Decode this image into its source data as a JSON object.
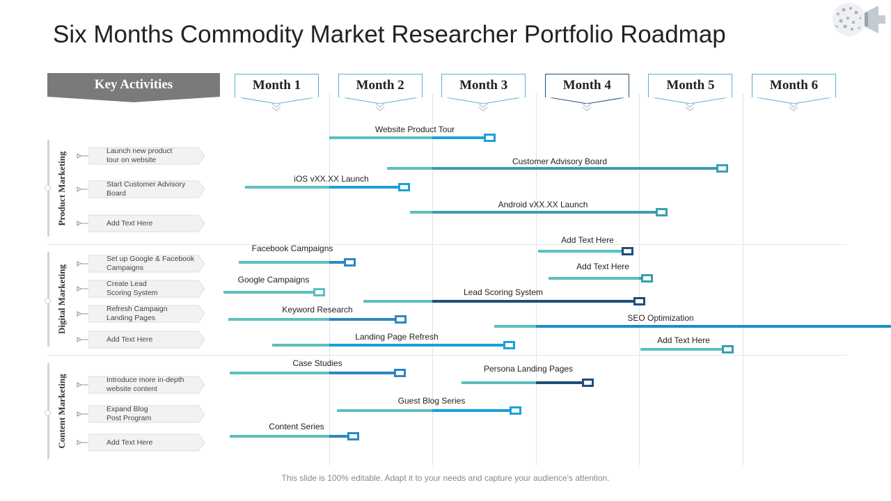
{
  "title": "Six Months Commodity Market Researcher Portfolio Roadmap",
  "key_activities_label": "Key Activities",
  "months": [
    "Month 1",
    "Month 2",
    "Month 3",
    "Month 4",
    "Month 5",
    "Month 6"
  ],
  "sections": [
    {
      "name": "Product Marketing",
      "activities": [
        "Launch new product\ntour on website",
        "Start Customer Advisory\nBoard",
        "Add Text Here"
      ]
    },
    {
      "name": "Digital Marketing",
      "activities": [
        "Set up Google & Facebook\nCampaigns",
        "Create Lead\nScoring System",
        "Refresh Campaign\nLanding Pages",
        "Add Text Here"
      ]
    },
    {
      "name": "Content Marketing",
      "activities": [
        "Introduce more in-depth\nwebsite content",
        "Expand Blog\nPost Program",
        "Add Text Here"
      ]
    }
  ],
  "bars": [
    {
      "label": "Website Product Tour",
      "start": 1.0,
      "end": 2.55,
      "color": "#1ba0d9"
    },
    {
      "label": "Customer Advisory Board",
      "start": 1.56,
      "end": 4.8,
      "color": "#3a9db0"
    },
    {
      "label": "iOS vXX.XX  Launch",
      "start": 0.19,
      "end": 1.72,
      "color": "#1ba0d9"
    },
    {
      "label": "Android vXX.XX  Launch",
      "start": 1.78,
      "end": 4.21,
      "color": "#3a9db0"
    },
    {
      "label": "Facebook Campaigns",
      "start": 0.13,
      "end": 1.2,
      "color": "#2e86c1"
    },
    {
      "label": "Add Text Here",
      "start": 3.02,
      "end": 3.88,
      "color": "#1f4e79"
    },
    {
      "label": "Add Text Here",
      "start": 3.12,
      "end": 4.07,
      "color": "#3a9db0"
    },
    {
      "label": "Google Campaigns",
      "start": -0.02,
      "end": 0.9,
      "color": "#5bbfbf"
    },
    {
      "label": "Lead Scoring System",
      "start": 1.33,
      "end": 4.0,
      "color": "#1f4e79"
    },
    {
      "label": "Keyword Research",
      "start": 0.03,
      "end": 1.69,
      "color": "#2e86c1"
    },
    {
      "label": "SEO Optimization",
      "start": 2.6,
      "end": 6.7,
      "color": "#1b8fc0"
    },
    {
      "label": "Landing Page Refresh",
      "start": 0.45,
      "end": 2.74,
      "color": "#1ba0d9"
    },
    {
      "label": "Add Text Here",
      "start": 4.01,
      "end": 4.85,
      "color": "#3a9db0"
    },
    {
      "label": "Case Studies",
      "start": 0.04,
      "end": 1.68,
      "color": "#2e86c1"
    },
    {
      "label": "Persona Landing Pages",
      "start": 2.28,
      "end": 3.5,
      "color": "#1f4e79"
    },
    {
      "label": "Guest Blog Series",
      "start": 1.08,
      "end": 2.8,
      "color": "#1ba0d9"
    },
    {
      "label": "Content Series",
      "start": 0.04,
      "end": 1.23,
      "color": "#2e86c1"
    }
  ],
  "footer": "This slide is 100% editable. Adapt it to your needs and capture your audience's attention."
}
